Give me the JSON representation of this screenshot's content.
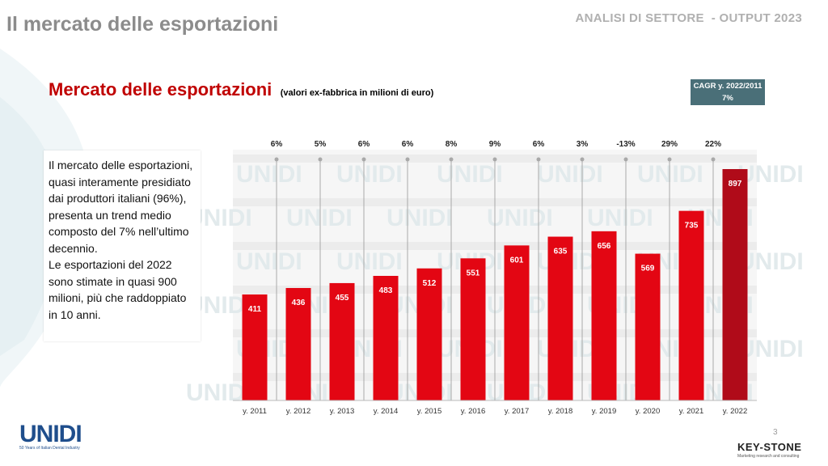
{
  "header": {
    "page_title": "Il mercato delle esportazioni",
    "right_label": "ANALISI DI SETTORE  - OUTPUT 2023"
  },
  "section": {
    "title": "Mercato delle esportazioni",
    "subtitle": "(valori ex-fabbrica in milioni di euro)"
  },
  "cagr": {
    "label": "CAGR y. 2022/2011",
    "value": "7%"
  },
  "description": {
    "p1": "Il mercato delle esportazioni, quasi interamente presidiato dai produttori italiani (96%), presenta un trend medio composto del 7% nell’ultimo decennio.",
    "p2": "Le esportazioni del 2022 sono stimate in quasi 900 milioni, più che raddoppiato in 10 anni."
  },
  "chart_data": {
    "type": "bar",
    "title": "Mercato delle esportazioni",
    "categories": [
      "y. 2011",
      "y. 2012",
      "y. 2013",
      "y. 2014",
      "y. 2015",
      "y. 2016",
      "y. 2017",
      "y. 2018",
      "y. 2019",
      "y. 2020",
      "y. 2021",
      "y. 2022"
    ],
    "values": [
      411,
      436,
      455,
      483,
      512,
      551,
      601,
      635,
      656,
      569,
      735,
      897
    ],
    "growth_labels": [
      "6%",
      "5%",
      "6%",
      "6%",
      "8%",
      "9%",
      "6%",
      "3%",
      "-13%",
      "29%",
      "22%"
    ],
    "bar_color": "#e30613",
    "last_bar_color": "#b00b19",
    "ylim": [
      0,
      960
    ],
    "grid": false
  },
  "watermark": "UNIDI",
  "footer": {
    "logo_left": "UNIDI",
    "logo_left_tag": "50 Years of Italian Dental Industry",
    "page_number": "3",
    "logo_right": "KEY-STONE",
    "logo_right_tag": "Marketing research and consulting"
  }
}
